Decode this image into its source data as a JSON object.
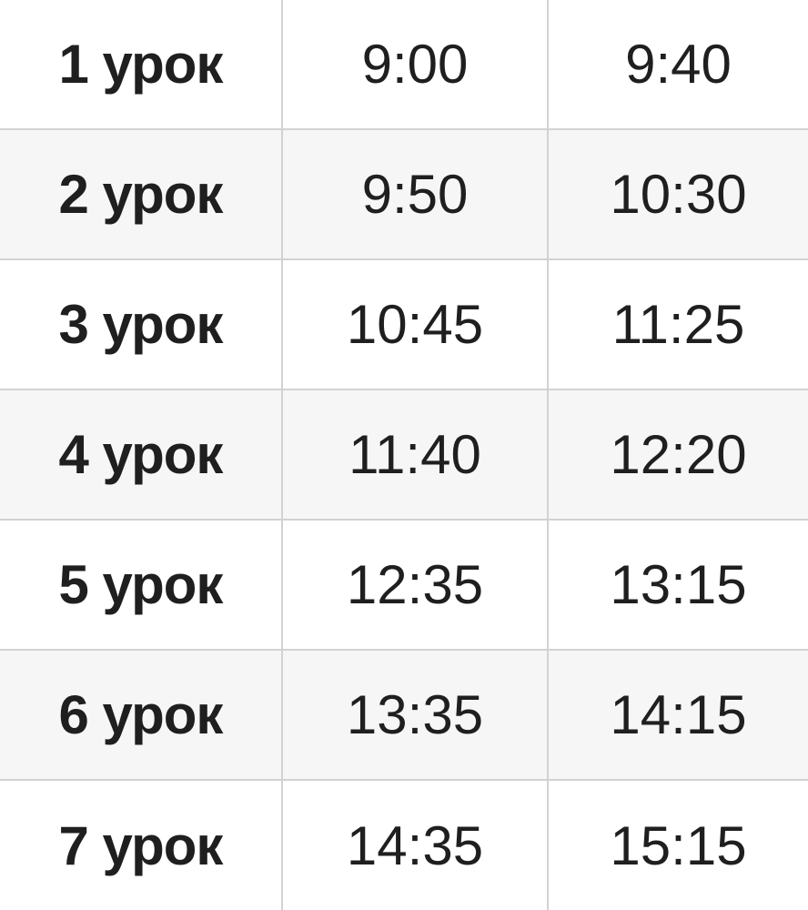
{
  "schedule": {
    "rows": [
      {
        "lesson": "1 урок",
        "start": "9:00",
        "end": "9:40"
      },
      {
        "lesson": "2 урок",
        "start": "9:50",
        "end": "10:30"
      },
      {
        "lesson": "3 урок",
        "start": "10:45",
        "end": "11:25"
      },
      {
        "lesson": "4 урок",
        "start": "11:40",
        "end": "12:20"
      },
      {
        "lesson": "5 урок",
        "start": "12:35",
        "end": "13:15"
      },
      {
        "lesson": "6 урок",
        "start": "13:35",
        "end": "14:15"
      },
      {
        "lesson": "7 урок",
        "start": "14:35",
        "end": "15:15"
      }
    ]
  }
}
